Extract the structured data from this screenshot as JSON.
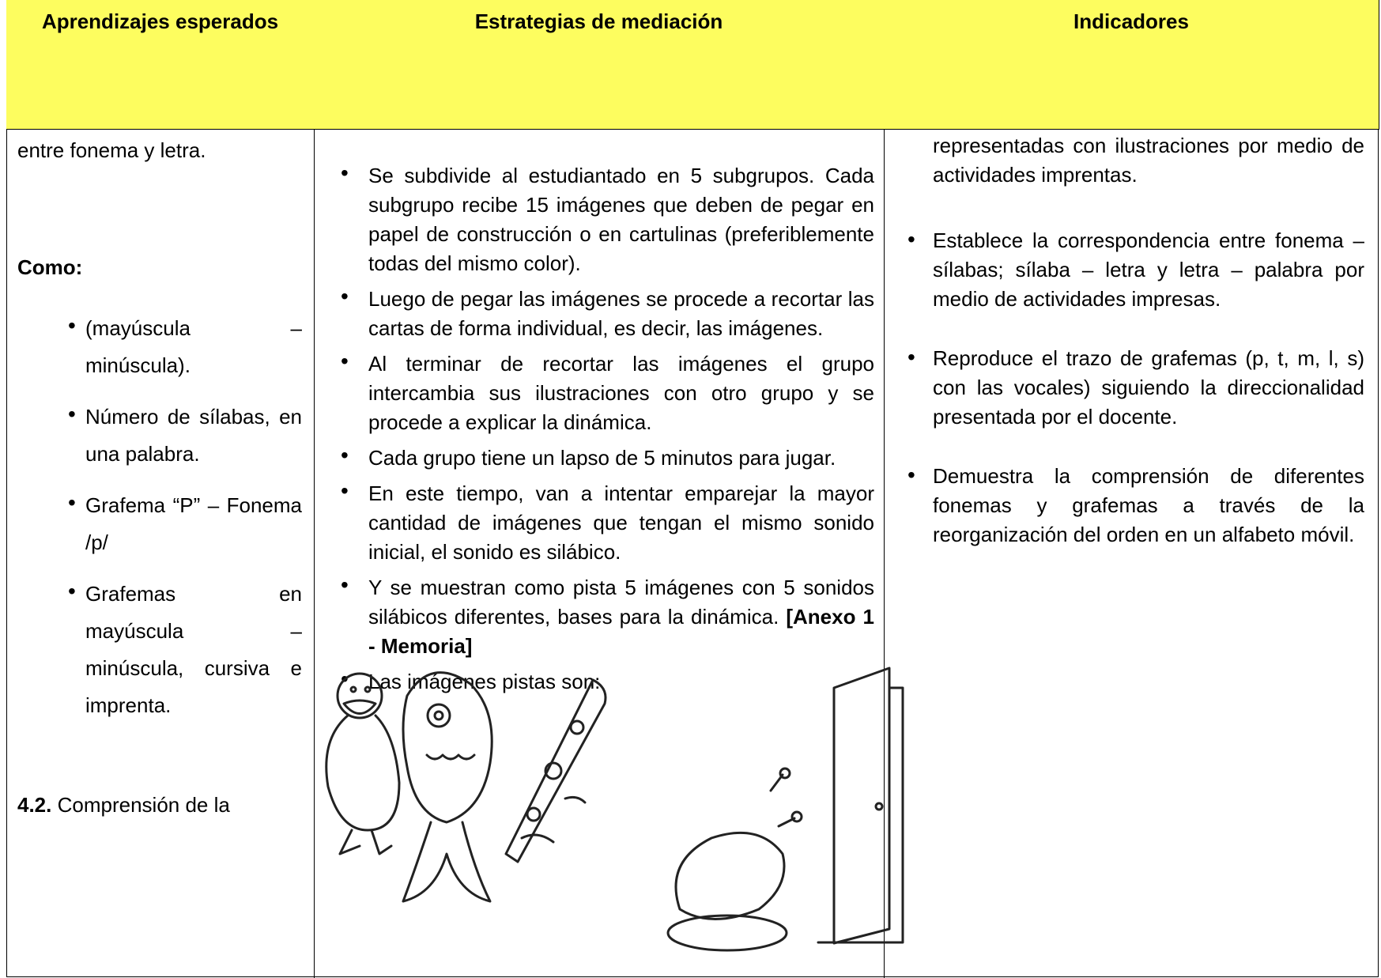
{
  "table": {
    "header": [
      "Aprendizajes esperados",
      "Estrategias de mediación",
      "Indicadores"
    ],
    "aprendizajes": {
      "intro": "entre fonema y letra.",
      "como": "Como:",
      "items": [
        "(mayúscula – minúscula).",
        "Número de sílabas, en una palabra.",
        "Grafema “P” – Fonema /p/",
        "Grafemas en mayúscula – minúscula, cursiva e imprenta."
      ],
      "section_number": "4.2.",
      "section_text": "Comprensión de la"
    },
    "estrategias": {
      "items": [
        "Se subdivide al estudiantado en 5 subgrupos. Cada subgrupo recibe 15 imágenes que deben de pegar en papel de construcción o en cartulinas (preferiblemente todas del mismo color).",
        "Luego de pegar las imágenes se procede a recortar las cartas de forma individual, es decir, las imágenes.",
        "Al terminar de recortar las imágenes el grupo intercambia sus ilustraciones con otro grupo y se procede a explicar la dinámica.",
        "Cada grupo tiene un lapso de 5 minutos para jugar.",
        "En este tiempo, van a intentar emparejar la mayor cantidad de imágenes que tengan el mismo sonido inicial, el sonido es silábico.",
        "Y se muestran como pista 5 imágenes con 5 sonidos silábicos diferentes, bases para la dinámica.",
        "Las imágenes pistas son:"
      ],
      "anexo": "[Anexo 1 - Memoria]"
    },
    "indicadores": {
      "intro": "representadas con ilustraciones por medio de actividades imprentas.",
      "items": [
        "Establece la correspondencia entre fonema – sílabas; sílaba – letra y letra – palabra por medio de actividades impresas.",
        "Reproduce el trazo de grafemas (p, t, m, l, s) con las vocales) siguiendo la direccionalidad presentada por el docente.",
        "Demuestra la comprensión de diferentes fonemas y grafemas a través de la reorganización del orden en un alfabeto móvil."
      ]
    }
  }
}
